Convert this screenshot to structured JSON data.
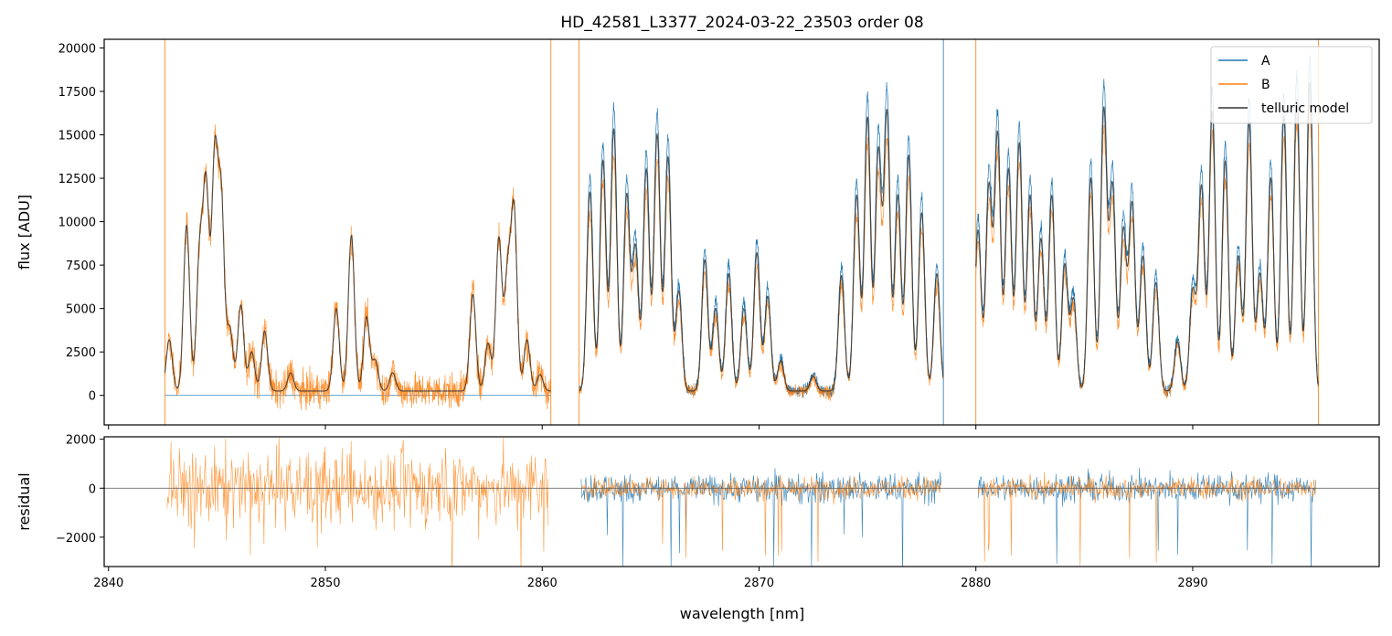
{
  "chart_data": [
    {
      "type": "line",
      "title": "HD_42581_L3377_2024-03-22_23503  order 08",
      "xlabel": "",
      "ylabel": "flux [ADU]",
      "xlim": [
        2839.8,
        2898.6
      ],
      "ylim": [
        -1700,
        20500
      ],
      "yticks": [
        0,
        2500,
        5000,
        7500,
        10000,
        12500,
        15000,
        17500,
        20000
      ],
      "xticks": [
        2840,
        2850,
        2860,
        2870,
        2880,
        2890
      ],
      "legend": {
        "placement": "top-right",
        "entries": [
          "A",
          "B",
          "telluric model"
        ]
      },
      "series": [
        {
          "name": "A",
          "color": "#1f77b4",
          "segments": [
            {
              "x0": 2842.6,
              "x1": 2860.4,
              "flat": 0
            },
            {
              "x0": 2861.7,
              "x1": 2878.5,
              "scale": 1.08
            },
            {
              "x0": 2880.0,
              "x1": 2895.8,
              "scale": 1.08
            }
          ]
        },
        {
          "name": "B",
          "color": "#ff7f0e",
          "segments": [
            {
              "x0": 2842.6,
              "x1": 2860.4,
              "scale": 1.0
            },
            {
              "x0": 2861.7,
              "x1": 2878.5,
              "scale": 0.9
            },
            {
              "x0": 2880.0,
              "x1": 2895.8,
              "scale": 0.92
            }
          ]
        },
        {
          "name": "telluric model",
          "color": "#333333",
          "segments": [
            {
              "x0": 2842.6,
              "x1": 2860.4
            },
            {
              "x0": 2861.7,
              "x1": 2878.5
            },
            {
              "x0": 2880.0,
              "x1": 2895.8
            }
          ]
        }
      ],
      "model_peaks": [
        {
          "x": 2842.8,
          "y": 3200
        },
        {
          "x": 2843.6,
          "y": 9800
        },
        {
          "x": 2844.2,
          "y": 8000
        },
        {
          "x": 2844.5,
          "y": 11800
        },
        {
          "x": 2844.9,
          "y": 13500
        },
        {
          "x": 2845.2,
          "y": 11000
        },
        {
          "x": 2845.6,
          "y": 3800
        },
        {
          "x": 2846.1,
          "y": 5200
        },
        {
          "x": 2846.6,
          "y": 2500
        },
        {
          "x": 2847.2,
          "y": 3700
        },
        {
          "x": 2848.4,
          "y": 1300
        },
        {
          "x": 2850.5,
          "y": 5000
        },
        {
          "x": 2851.2,
          "y": 9200
        },
        {
          "x": 2851.9,
          "y": 4500
        },
        {
          "x": 2852.3,
          "y": 2000
        },
        {
          "x": 2853.1,
          "y": 1300
        },
        {
          "x": 2856.8,
          "y": 5800
        },
        {
          "x": 2857.5,
          "y": 3000
        },
        {
          "x": 2858.0,
          "y": 9000
        },
        {
          "x": 2858.4,
          "y": 6800
        },
        {
          "x": 2858.7,
          "y": 10500
        },
        {
          "x": 2859.3,
          "y": 3200
        },
        {
          "x": 2859.9,
          "y": 1200
        },
        {
          "x": 2862.2,
          "y": 11700
        },
        {
          "x": 2862.8,
          "y": 13500
        },
        {
          "x": 2863.3,
          "y": 15300
        },
        {
          "x": 2863.9,
          "y": 11500
        },
        {
          "x": 2864.3,
          "y": 8500
        },
        {
          "x": 2864.8,
          "y": 13000
        },
        {
          "x": 2865.3,
          "y": 15000
        },
        {
          "x": 2865.8,
          "y": 13700
        },
        {
          "x": 2866.3,
          "y": 6000
        },
        {
          "x": 2867.5,
          "y": 7800
        },
        {
          "x": 2868.0,
          "y": 5000
        },
        {
          "x": 2868.6,
          "y": 7000
        },
        {
          "x": 2869.3,
          "y": 5000
        },
        {
          "x": 2869.9,
          "y": 8200
        },
        {
          "x": 2870.4,
          "y": 5700
        },
        {
          "x": 2871.0,
          "y": 2000
        },
        {
          "x": 2872.5,
          "y": 1100
        },
        {
          "x": 2873.8,
          "y": 6900
        },
        {
          "x": 2874.5,
          "y": 11500
        },
        {
          "x": 2875.0,
          "y": 16000
        },
        {
          "x": 2875.5,
          "y": 14000
        },
        {
          "x": 2875.9,
          "y": 16200
        },
        {
          "x": 2876.4,
          "y": 11500
        },
        {
          "x": 2876.9,
          "y": 13800
        },
        {
          "x": 2877.5,
          "y": 10500
        },
        {
          "x": 2878.2,
          "y": 7000
        },
        {
          "x": 2880.1,
          "y": 9500
        },
        {
          "x": 2880.6,
          "y": 12000
        },
        {
          "x": 2881.0,
          "y": 15000
        },
        {
          "x": 2881.5,
          "y": 13000
        },
        {
          "x": 2882.0,
          "y": 14500
        },
        {
          "x": 2882.5,
          "y": 11500
        },
        {
          "x": 2883.0,
          "y": 9000
        },
        {
          "x": 2883.5,
          "y": 11500
        },
        {
          "x": 2884.1,
          "y": 7500
        },
        {
          "x": 2884.5,
          "y": 5500
        },
        {
          "x": 2885.3,
          "y": 12500
        },
        {
          "x": 2885.9,
          "y": 16400
        },
        {
          "x": 2886.3,
          "y": 12000
        },
        {
          "x": 2886.8,
          "y": 9500
        },
        {
          "x": 2887.2,
          "y": 11000
        },
        {
          "x": 2887.7,
          "y": 8000
        },
        {
          "x": 2888.3,
          "y": 6500
        },
        {
          "x": 2889.3,
          "y": 3100
        },
        {
          "x": 2890.0,
          "y": 6000
        },
        {
          "x": 2890.4,
          "y": 12000
        },
        {
          "x": 2890.9,
          "y": 16300
        },
        {
          "x": 2891.5,
          "y": 13500
        },
        {
          "x": 2892.1,
          "y": 8000
        },
        {
          "x": 2892.6,
          "y": 15700
        },
        {
          "x": 2893.1,
          "y": 7000
        },
        {
          "x": 2893.6,
          "y": 12500
        },
        {
          "x": 2894.2,
          "y": 16000
        },
        {
          "x": 2894.8,
          "y": 17000
        },
        {
          "x": 2895.4,
          "y": 18000
        }
      ],
      "model_width": 0.14,
      "model_baseline": 250
    },
    {
      "type": "line",
      "title": "",
      "xlabel": "wavelength [nm]",
      "ylabel": "residual",
      "xlim": [
        2839.8,
        2898.6
      ],
      "ylim": [
        -3200,
        2100
      ],
      "yticks": [
        -2000,
        0,
        2000
      ],
      "ytick_labels": [
        "−2000",
        "0",
        "2000"
      ],
      "xticks": [
        2840,
        2850,
        2860,
        2870,
        2880,
        2890
      ],
      "zero_line": true,
      "series": [
        {
          "name": "A",
          "color": "#1f77b4"
        },
        {
          "name": "B",
          "color": "#ff7f0e"
        }
      ]
    }
  ]
}
